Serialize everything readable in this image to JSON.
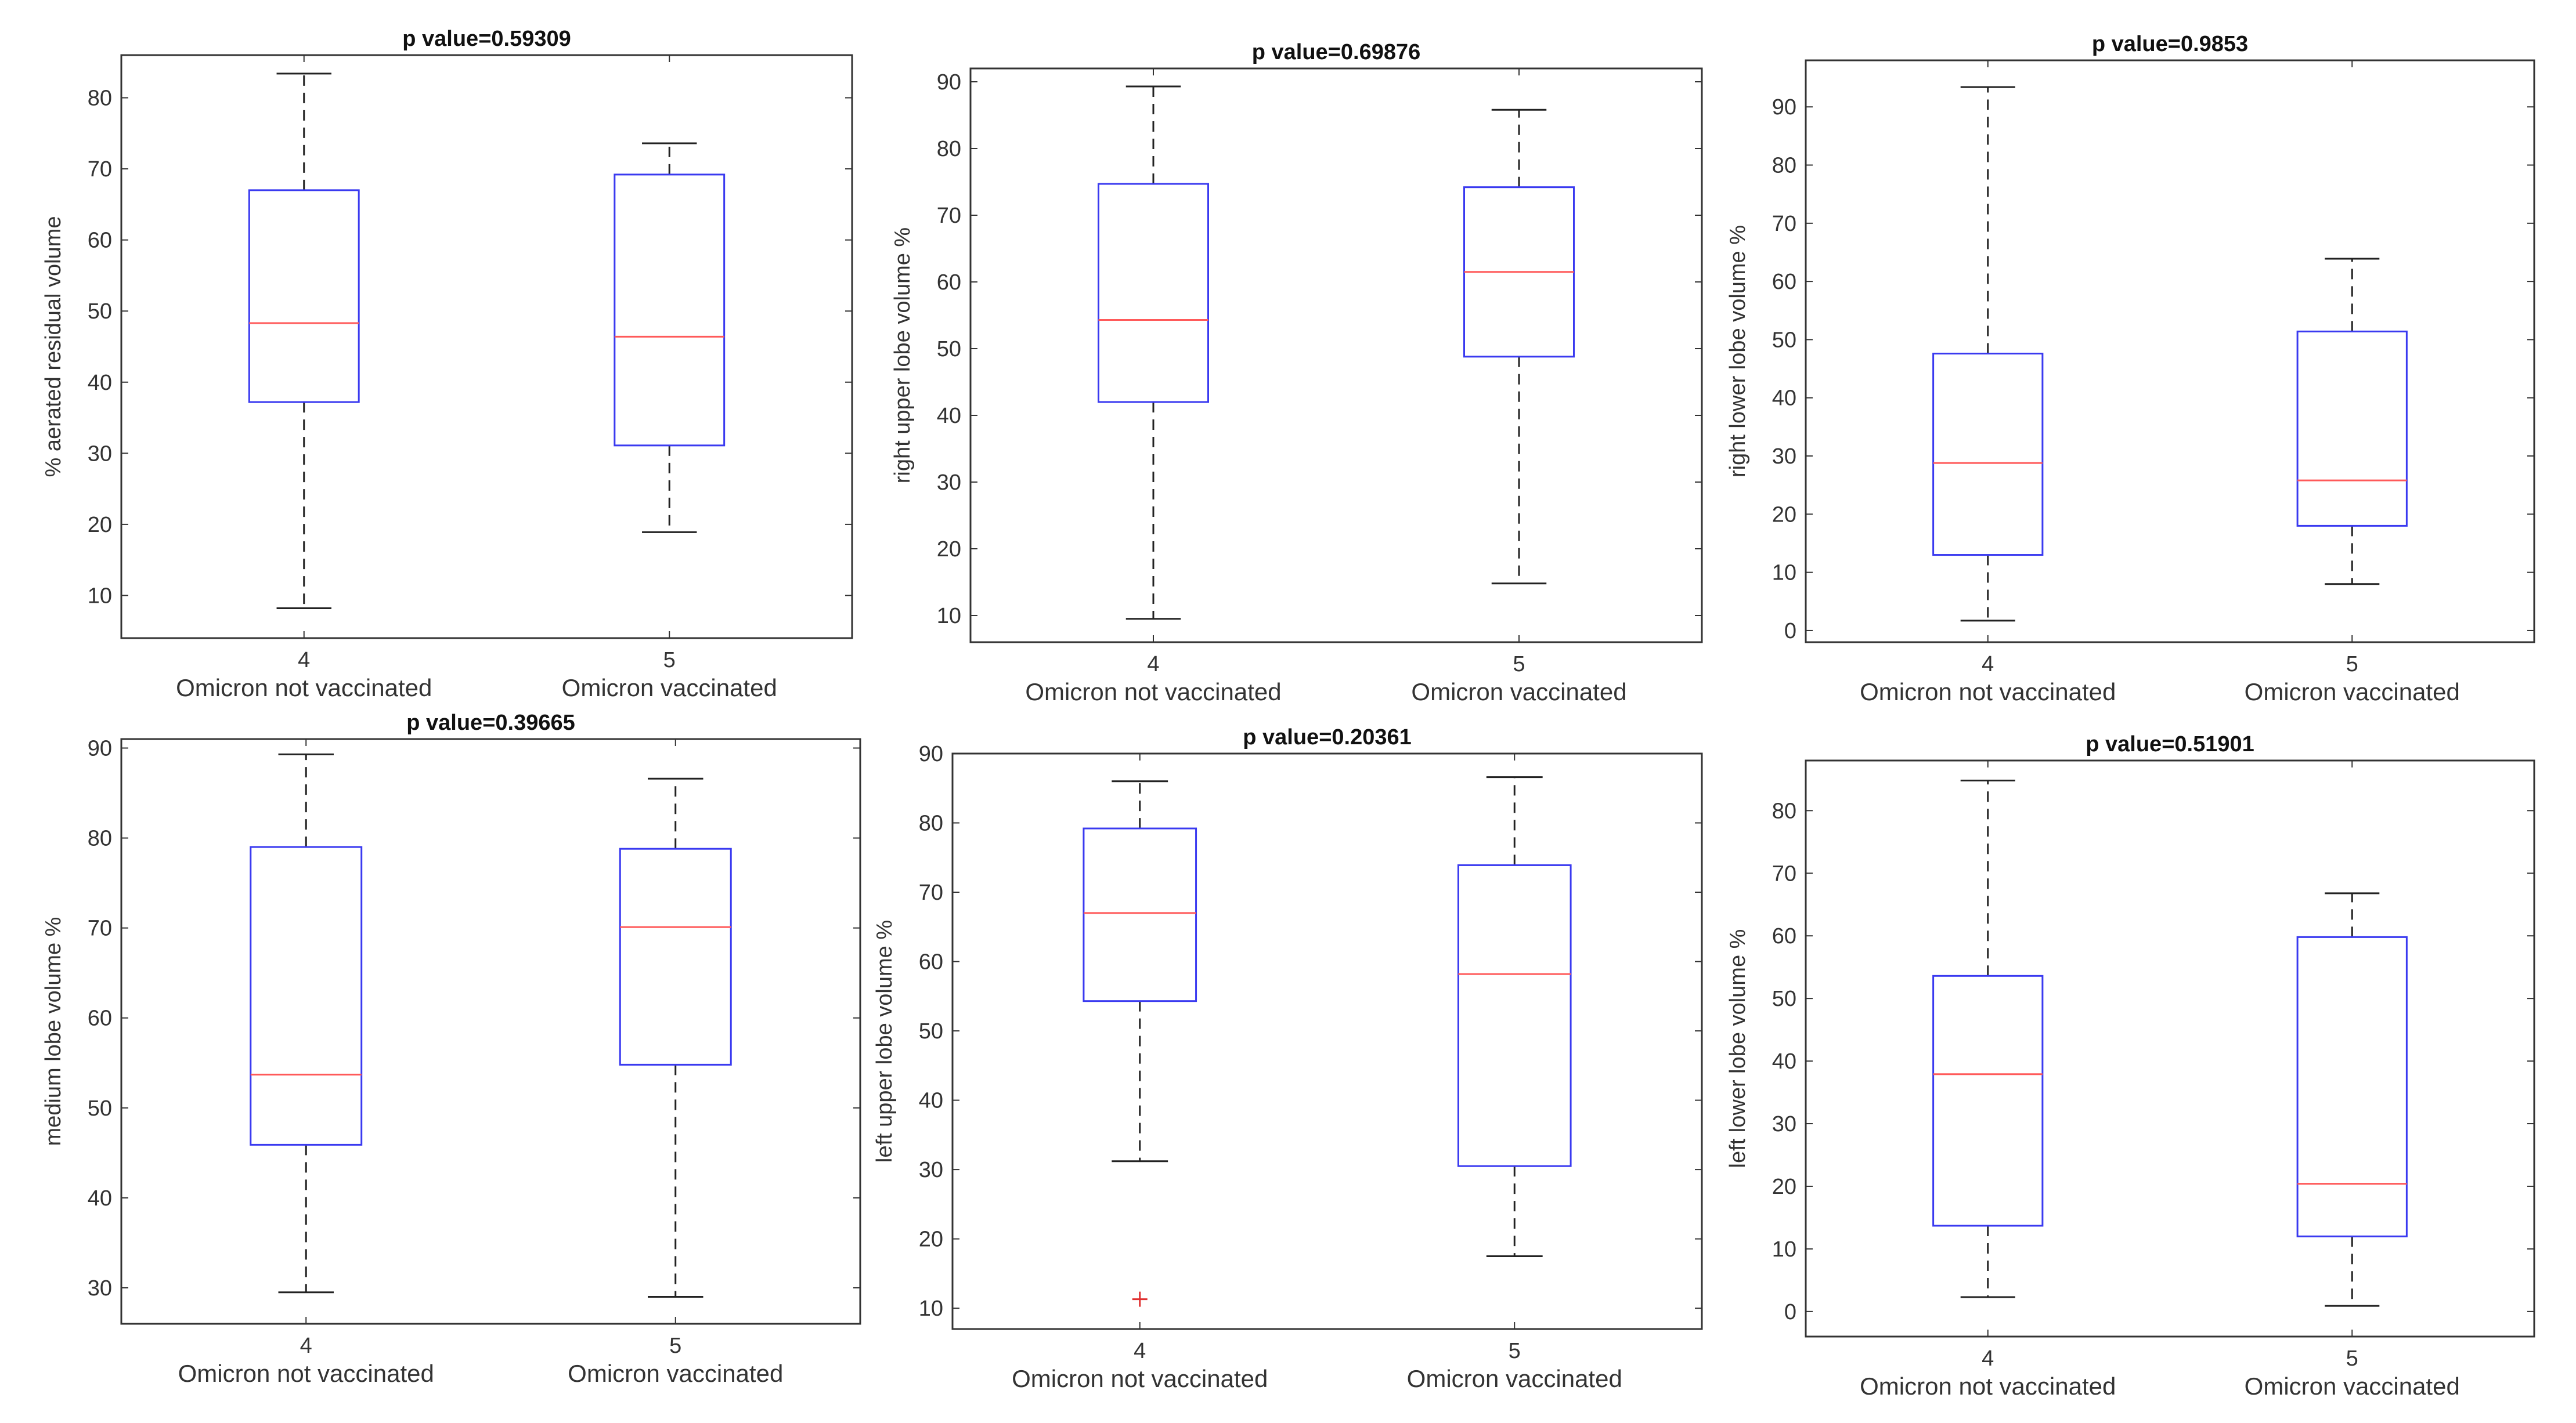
{
  "figure": {
    "colors": {
      "box": "#3a3af0",
      "median": "#ff5a5a",
      "whisker": "#222222",
      "outlier": "#e03030",
      "axis": "#333333",
      "background": "#ffffff"
    }
  },
  "chart_data": [
    {
      "type": "box",
      "title": "p value=0.59309",
      "ylabel": "% aerated residual volume",
      "xlabel": "",
      "ylim": [
        4,
        86
      ],
      "yticks": [
        10,
        20,
        30,
        40,
        50,
        60,
        70,
        80
      ],
      "grid": false,
      "groups": [
        {
          "tick": "4",
          "name": "Omicron not vaccinated",
          "whisker_low": 8.2,
          "q1": 37.2,
          "median": 48.3,
          "q3": 67.0,
          "whisker_high": 83.4,
          "outliers": []
        },
        {
          "tick": "5",
          "name": "Omicron vaccinated",
          "whisker_low": 18.9,
          "q1": 31.1,
          "median": 46.4,
          "q3": 69.2,
          "whisker_high": 73.6,
          "outliers": []
        }
      ]
    },
    {
      "type": "box",
      "title": "p value=0.69876",
      "ylabel": "right upper lobe volume %",
      "xlabel": "",
      "ylim": [
        6,
        92
      ],
      "yticks": [
        10,
        20,
        30,
        40,
        50,
        60,
        70,
        80,
        90
      ],
      "grid": false,
      "groups": [
        {
          "tick": "4",
          "name": "Omicron not vaccinated",
          "whisker_low": 9.5,
          "q1": 42.0,
          "median": 54.3,
          "q3": 74.7,
          "whisker_high": 89.3,
          "outliers": []
        },
        {
          "tick": "5",
          "name": "Omicron vaccinated",
          "whisker_low": 14.8,
          "q1": 48.8,
          "median": 61.5,
          "q3": 74.2,
          "whisker_high": 85.8,
          "outliers": []
        }
      ]
    },
    {
      "type": "box",
      "title": "p value=0.9853",
      "ylabel": "right lower lobe volume %",
      "xlabel": "",
      "ylim": [
        -2,
        98
      ],
      "yticks": [
        0,
        10,
        20,
        30,
        40,
        50,
        60,
        70,
        80,
        90
      ],
      "grid": false,
      "groups": [
        {
          "tick": "4",
          "name": "Omicron not vaccinated",
          "whisker_low": 1.7,
          "q1": 13.0,
          "median": 28.8,
          "q3": 47.6,
          "whisker_high": 93.4,
          "outliers": []
        },
        {
          "tick": "5",
          "name": "Omicron vaccinated",
          "whisker_low": 8.0,
          "q1": 18.0,
          "median": 25.8,
          "q3": 51.4,
          "whisker_high": 63.9,
          "outliers": []
        }
      ]
    },
    {
      "type": "box",
      "title": "p value=0.39665",
      "ylabel": "medium lobe volume %",
      "xlabel": "",
      "ylim": [
        26,
        91
      ],
      "yticks": [
        30,
        40,
        50,
        60,
        70,
        80,
        90
      ],
      "grid": false,
      "groups": [
        {
          "tick": "4",
          "name": "Omicron not vaccinated",
          "whisker_low": 29.5,
          "q1": 45.9,
          "median": 53.7,
          "q3": 79.0,
          "whisker_high": 89.3,
          "outliers": []
        },
        {
          "tick": "5",
          "name": "Omicron vaccinated",
          "whisker_low": 29.0,
          "q1": 54.8,
          "median": 70.1,
          "q3": 78.8,
          "whisker_high": 86.6,
          "outliers": []
        }
      ]
    },
    {
      "type": "box",
      "title": "p value=0.20361",
      "ylabel": "left upper lobe volume %",
      "xlabel": "",
      "ylim": [
        7,
        90
      ],
      "yticks": [
        10,
        20,
        30,
        40,
        50,
        60,
        70,
        80,
        90
      ],
      "grid": false,
      "groups": [
        {
          "tick": "4",
          "name": "Omicron not vaccinated",
          "whisker_low": 31.2,
          "q1": 54.3,
          "median": 67.0,
          "q3": 79.2,
          "whisker_high": 86.0,
          "outliers": [
            11.3
          ]
        },
        {
          "tick": "5",
          "name": "Omicron vaccinated",
          "whisker_low": 17.5,
          "q1": 30.5,
          "median": 58.2,
          "q3": 73.9,
          "whisker_high": 86.6,
          "outliers": []
        }
      ]
    },
    {
      "type": "box",
      "title": "p value=0.51901",
      "ylabel": "left lower lobe volume %",
      "xlabel": "",
      "ylim": [
        -4,
        88
      ],
      "yticks": [
        0,
        10,
        20,
        30,
        40,
        50,
        60,
        70,
        80
      ],
      "grid": false,
      "groups": [
        {
          "tick": "4",
          "name": "Omicron not vaccinated",
          "whisker_low": 2.3,
          "q1": 13.7,
          "median": 37.9,
          "q3": 53.6,
          "whisker_high": 84.8,
          "outliers": []
        },
        {
          "tick": "5",
          "name": "Omicron vaccinated",
          "whisker_low": 0.9,
          "q1": 12.0,
          "median": 20.4,
          "q3": 59.8,
          "whisker_high": 66.8,
          "outliers": []
        }
      ]
    }
  ]
}
